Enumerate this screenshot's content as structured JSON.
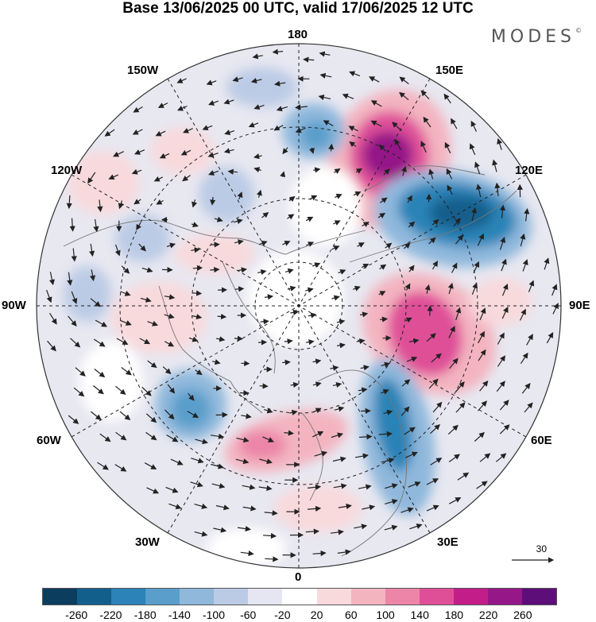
{
  "title": "Base 13/06/2025 00 UTC, valid 17/06/2025 12 UTC",
  "brand": "MODES",
  "brand_mark": "©",
  "longitude_labels": {
    "n180": "180",
    "w150": "150W",
    "e150": "150E",
    "w120": "120W",
    "e120": "120E",
    "w90": "90W",
    "e90": "90E",
    "w60": "60W",
    "e60": "60E",
    "w30": "30W",
    "e30": "30E",
    "zero": "0"
  },
  "reference_vector": "30",
  "colorbar": {
    "colors": [
      "#0a3d5e",
      "#125f8c",
      "#2b83b7",
      "#5a9ecb",
      "#8fb8db",
      "#bccbe5",
      "#e6e6f2",
      "#ffffff",
      "#f8d9dc",
      "#f3b4c0",
      "#ec85a8",
      "#df4f98",
      "#c31d8a",
      "#951788",
      "#5e0e79"
    ],
    "ticks": [
      "-260",
      "-220",
      "-180",
      "-140",
      "-100",
      "-60",
      "-20",
      "20",
      "60",
      "100",
      "140",
      "180",
      "220",
      "260"
    ]
  }
}
